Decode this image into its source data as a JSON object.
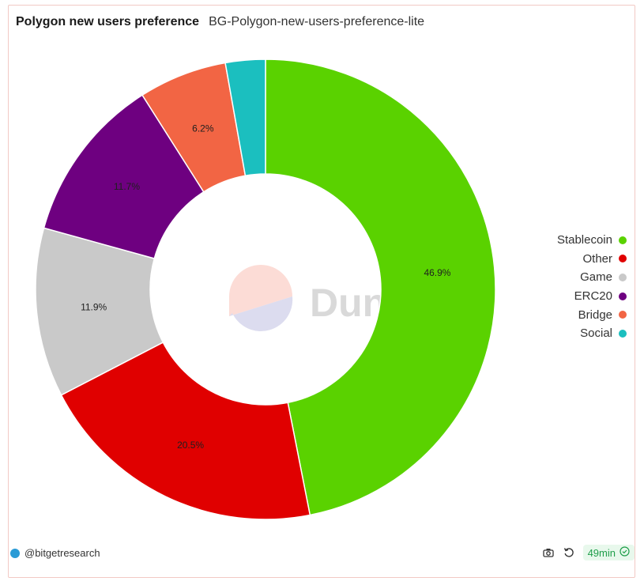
{
  "header": {
    "title": "Polygon new users preference",
    "subtitle": "BG-Polygon-new-users-preference-lite"
  },
  "chart_data": {
    "type": "pie",
    "donut": true,
    "title": "Polygon new users preference",
    "categories": [
      "Stablecoin",
      "Other",
      "Game",
      "ERC20",
      "Bridge",
      "Social"
    ],
    "values": [
      46.9,
      20.5,
      11.9,
      11.7,
      6.2,
      2.8
    ],
    "labels": [
      "46.9%",
      "20.5%",
      "11.9%",
      "11.7%",
      "6.2%",
      ""
    ],
    "colors": [
      "#5ad200",
      "#e00000",
      "#c9c9c9",
      "#6e0080",
      "#f26544",
      "#1bbfbf"
    ],
    "legend_position": "right"
  },
  "watermark": {
    "text": "Dune"
  },
  "footer": {
    "author": "@bitgetresearch",
    "age_badge": "49min"
  },
  "icons": {
    "camera": "camera-icon",
    "refresh": "refresh-icon",
    "check": "check-circle-icon"
  }
}
